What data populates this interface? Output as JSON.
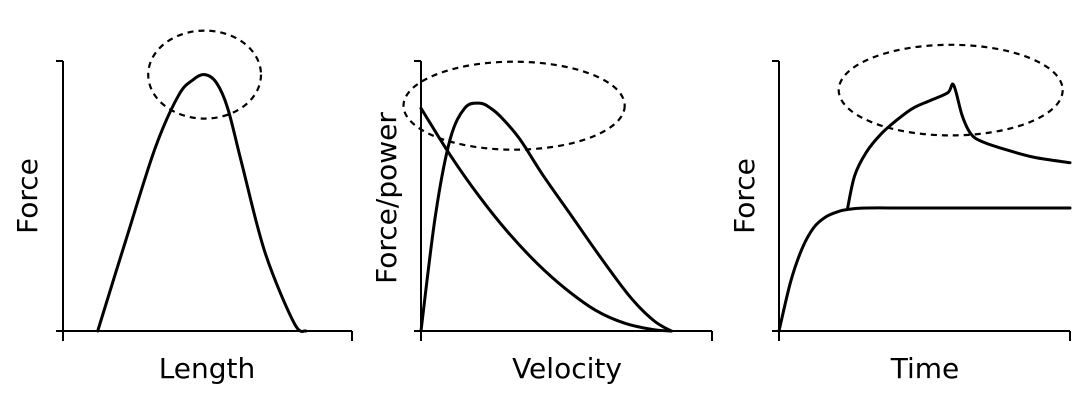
{
  "chart_data": [
    {
      "type": "line",
      "xlabel": "Length",
      "ylabel": "Force",
      "xlim": [
        0,
        1
      ],
      "ylim": [
        0,
        1
      ],
      "grid": false,
      "series": [
        {
          "x": [
            0.12,
            0.22,
            0.32,
            0.4,
            0.45,
            0.49,
            0.53,
            0.57,
            0.62,
            0.7,
            0.8,
            0.84
          ],
          "y": [
            0.0,
            0.36,
            0.71,
            0.91,
            0.97,
            0.99,
            0.96,
            0.86,
            0.64,
            0.3,
            0.03,
            0.0
          ]
        }
      ],
      "highlights": [
        {
          "type": "ellipse",
          "cx": 0.49,
          "cy": 0.99,
          "rx": 0.195,
          "ry": 0.17
        }
      ]
    },
    {
      "type": "line",
      "xlabel": "Velocity",
      "ylabel": "Force/power",
      "xlim": [
        0,
        1
      ],
      "ylim": [
        0,
        1
      ],
      "grid": false,
      "series": [
        {
          "x": [
            0.0,
            0.1,
            0.2,
            0.3,
            0.4,
            0.5,
            0.6,
            0.7,
            0.8,
            0.86
          ],
          "y": [
            0.86,
            0.68,
            0.52,
            0.38,
            0.26,
            0.16,
            0.08,
            0.03,
            0.005,
            0.0
          ]
        },
        {
          "x": [
            0.0,
            0.05,
            0.1,
            0.15,
            0.2,
            0.24,
            0.28,
            0.34,
            0.42,
            0.52,
            0.62,
            0.72,
            0.8,
            0.86
          ],
          "y": [
            0.0,
            0.45,
            0.74,
            0.86,
            0.88,
            0.86,
            0.82,
            0.74,
            0.6,
            0.44,
            0.28,
            0.13,
            0.04,
            0.0
          ]
        }
      ],
      "highlights": [
        {
          "type": "ellipse",
          "cx": 0.32,
          "cy": 0.87,
          "rx": 0.38,
          "ry": 0.17
        }
      ]
    },
    {
      "type": "line",
      "xlabel": "Time",
      "ylabel": "Force",
      "xlim": [
        0,
        1
      ],
      "ylim": [
        0,
        1
      ],
      "grid": false,
      "series": [
        {
          "x": [
            0.0,
            0.04,
            0.08,
            0.12,
            0.16,
            0.2,
            0.24,
            0.3,
            0.45,
            0.65,
            1.0
          ],
          "y": [
            0.0,
            0.19,
            0.32,
            0.4,
            0.44,
            0.46,
            0.47,
            0.475,
            0.475,
            0.475,
            0.475
          ]
        },
        {
          "x": [
            0.235,
            0.26,
            0.3,
            0.35,
            0.4,
            0.46,
            0.52,
            0.58,
            0.6,
            0.63,
            0.66,
            0.7,
            0.78,
            0.88,
            1.0
          ],
          "y": [
            0.47,
            0.6,
            0.69,
            0.76,
            0.81,
            0.86,
            0.89,
            0.92,
            0.95,
            0.83,
            0.76,
            0.73,
            0.7,
            0.67,
            0.65
          ]
        }
      ],
      "highlights": [
        {
          "type": "ellipse",
          "cx": 0.59,
          "cy": 0.93,
          "rx": 0.385,
          "ry": 0.175
        }
      ]
    }
  ]
}
